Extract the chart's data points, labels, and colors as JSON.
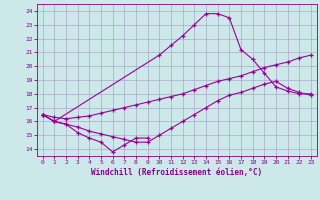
{
  "xlabel": "Windchill (Refroidissement éolien,°C)",
  "bg_color": "#cce8e8",
  "grid_color": "#aaaacc",
  "line_color": "#990099",
  "xlim": [
    -0.5,
    23.5
  ],
  "ylim": [
    13.5,
    24.5
  ],
  "xticks": [
    0,
    1,
    2,
    3,
    4,
    5,
    6,
    7,
    8,
    9,
    10,
    11,
    12,
    13,
    14,
    15,
    16,
    17,
    18,
    19,
    20,
    21,
    22,
    23
  ],
  "yticks": [
    14,
    15,
    16,
    17,
    18,
    19,
    20,
    21,
    22,
    23,
    24
  ],
  "line1_x": [
    0,
    1,
    2,
    3,
    4,
    5,
    6,
    7,
    8,
    9
  ],
  "line1_y": [
    16.5,
    16.0,
    15.8,
    15.2,
    14.8,
    14.5,
    13.8,
    14.3,
    14.8,
    14.8
  ],
  "line2_x": [
    0,
    1,
    10,
    11,
    12,
    13,
    14,
    15,
    16,
    17,
    18,
    19,
    20,
    21,
    22,
    23
  ],
  "line2_y": [
    16.5,
    16.0,
    20.8,
    21.5,
    22.2,
    23.0,
    23.8,
    23.8,
    23.5,
    21.2,
    20.5,
    19.5,
    18.5,
    18.2,
    18.0,
    18.0
  ],
  "line3_x": [
    0,
    1,
    2,
    3,
    4,
    5,
    6,
    7,
    8,
    9,
    10,
    11,
    12,
    13,
    14,
    15,
    16,
    17,
    18,
    19,
    20,
    21,
    22,
    23
  ],
  "line3_y": [
    16.5,
    16.3,
    16.2,
    16.3,
    16.4,
    16.6,
    16.8,
    17.0,
    17.2,
    17.4,
    17.6,
    17.8,
    18.0,
    18.3,
    18.6,
    18.9,
    19.1,
    19.3,
    19.6,
    19.9,
    20.1,
    20.3,
    20.6,
    20.8
  ],
  "line4_x": [
    0,
    1,
    2,
    3,
    4,
    5,
    6,
    7,
    8,
    9,
    10,
    11,
    12,
    13,
    14,
    15,
    16,
    17,
    18,
    19,
    20,
    21,
    22,
    23
  ],
  "line4_y": [
    16.5,
    16.0,
    15.8,
    15.6,
    15.3,
    15.1,
    14.9,
    14.7,
    14.5,
    14.5,
    15.0,
    15.5,
    16.0,
    16.5,
    17.0,
    17.5,
    17.9,
    18.1,
    18.4,
    18.7,
    18.9,
    18.4,
    18.1,
    17.9
  ]
}
